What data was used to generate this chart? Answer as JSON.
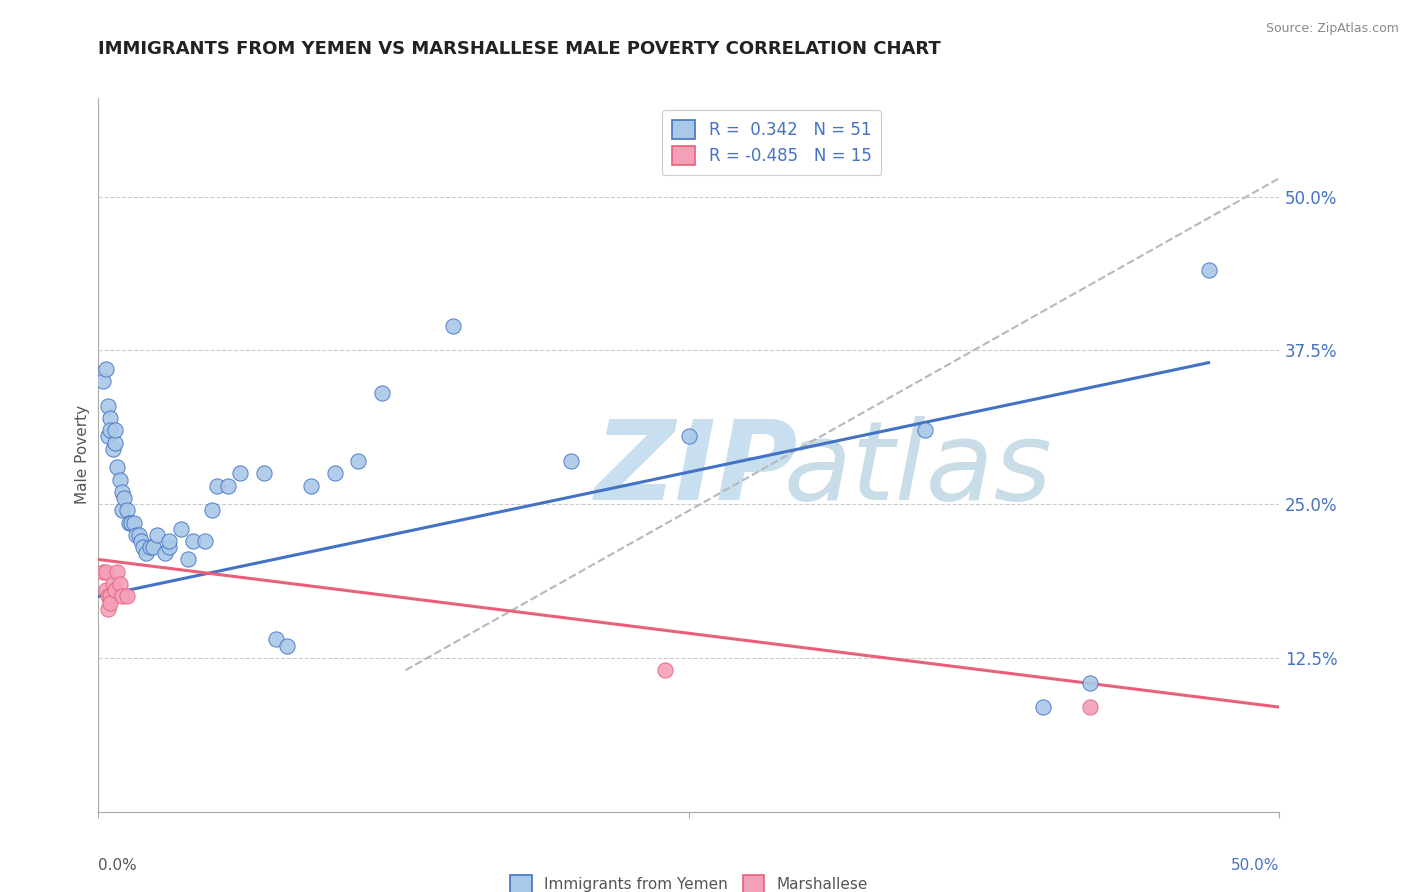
{
  "title": "IMMIGRANTS FROM YEMEN VS MARSHALLESE MALE POVERTY CORRELATION CHART",
  "source": "Source: ZipAtlas.com",
  "ylabel": "Male Poverty",
  "y_tick_labels": [
    "12.5%",
    "25.0%",
    "37.5%",
    "50.0%"
  ],
  "y_tick_values": [
    0.125,
    0.25,
    0.375,
    0.5
  ],
  "xlim": [
    0.0,
    0.5
  ],
  "ylim": [
    0.0,
    0.58
  ],
  "scatter_blue": [
    [
      0.002,
      0.35
    ],
    [
      0.003,
      0.36
    ],
    [
      0.004,
      0.33
    ],
    [
      0.004,
      0.305
    ],
    [
      0.005,
      0.32
    ],
    [
      0.005,
      0.31
    ],
    [
      0.006,
      0.295
    ],
    [
      0.007,
      0.3
    ],
    [
      0.007,
      0.31
    ],
    [
      0.008,
      0.28
    ],
    [
      0.009,
      0.27
    ],
    [
      0.01,
      0.26
    ],
    [
      0.01,
      0.245
    ],
    [
      0.011,
      0.255
    ],
    [
      0.012,
      0.245
    ],
    [
      0.013,
      0.235
    ],
    [
      0.014,
      0.235
    ],
    [
      0.015,
      0.235
    ],
    [
      0.016,
      0.225
    ],
    [
      0.017,
      0.225
    ],
    [
      0.018,
      0.22
    ],
    [
      0.019,
      0.215
    ],
    [
      0.02,
      0.21
    ],
    [
      0.022,
      0.215
    ],
    [
      0.023,
      0.215
    ],
    [
      0.025,
      0.225
    ],
    [
      0.028,
      0.21
    ],
    [
      0.03,
      0.215
    ],
    [
      0.03,
      0.22
    ],
    [
      0.035,
      0.23
    ],
    [
      0.038,
      0.205
    ],
    [
      0.04,
      0.22
    ],
    [
      0.045,
      0.22
    ],
    [
      0.048,
      0.245
    ],
    [
      0.05,
      0.265
    ],
    [
      0.055,
      0.265
    ],
    [
      0.06,
      0.275
    ],
    [
      0.07,
      0.275
    ],
    [
      0.075,
      0.14
    ],
    [
      0.08,
      0.135
    ],
    [
      0.09,
      0.265
    ],
    [
      0.1,
      0.275
    ],
    [
      0.11,
      0.285
    ],
    [
      0.12,
      0.34
    ],
    [
      0.15,
      0.395
    ],
    [
      0.2,
      0.285
    ],
    [
      0.25,
      0.305
    ],
    [
      0.35,
      0.31
    ],
    [
      0.4,
      0.085
    ],
    [
      0.42,
      0.105
    ],
    [
      0.47,
      0.44
    ]
  ],
  "scatter_pink": [
    [
      0.002,
      0.195
    ],
    [
      0.003,
      0.195
    ],
    [
      0.003,
      0.18
    ],
    [
      0.004,
      0.175
    ],
    [
      0.004,
      0.165
    ],
    [
      0.005,
      0.175
    ],
    [
      0.005,
      0.17
    ],
    [
      0.006,
      0.185
    ],
    [
      0.007,
      0.18
    ],
    [
      0.008,
      0.195
    ],
    [
      0.009,
      0.185
    ],
    [
      0.01,
      0.175
    ],
    [
      0.012,
      0.175
    ],
    [
      0.24,
      0.115
    ],
    [
      0.42,
      0.085
    ]
  ],
  "blue_line_x": [
    0.0,
    0.47
  ],
  "blue_line_y": [
    0.175,
    0.365
  ],
  "pink_line_x": [
    0.0,
    0.5
  ],
  "pink_line_y": [
    0.205,
    0.085
  ],
  "dashed_line_x": [
    0.13,
    0.5
  ],
  "dashed_line_y": [
    0.115,
    0.515
  ],
  "dot_color_blue": "#aac8e8",
  "dot_color_pink": "#f4a0b8",
  "line_color_blue": "#4472c4",
  "line_color_pink": "#e8607a",
  "dashed_line_color": "#b8b8b8",
  "legend_box_color_blue": "#aac8e8",
  "legend_box_color_pink": "#f4a0b8",
  "title_color": "#222222",
  "axis_label_color": "#555555",
  "right_axis_color": "#4472c4",
  "watermark_zip_color": "#c8dff0",
  "watermark_atlas_color": "#c8dde8",
  "grid_color": "#cccccc",
  "background_color": "#ffffff",
  "legend_label1": "R =  0.342   N = 51",
  "legend_label2": "R = -0.485   N = 15"
}
